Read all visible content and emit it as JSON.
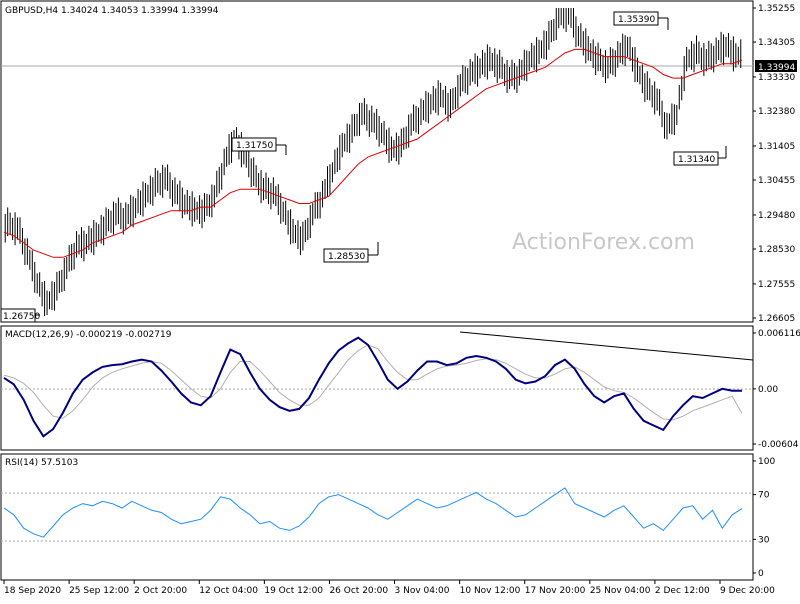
{
  "main_panel": {
    "header": "GBPUSD,H4  1.34024 1.34053 1.33994 1.33994",
    "watermark": "ActionForex.com",
    "current_price": "1.33994",
    "y_ticks": [
      "1.35255",
      "1.34305",
      "1.33330",
      "1.32380",
      "1.31405",
      "1.30455",
      "1.29480",
      "1.28530",
      "1.27555",
      "1.26605"
    ],
    "callouts": [
      "1.35390",
      "1.31750",
      "1.31340",
      "1.28530",
      "1.26750"
    ]
  },
  "macd_panel": {
    "header": "MACD(12,26,9) -0.000219 -0.002719",
    "y_ticks": [
      "0.006116",
      "0.00",
      "-0.00604"
    ]
  },
  "rsi_panel": {
    "header": "RSI(14) 57.5103",
    "y_ticks": [
      "100",
      "70",
      "30",
      "0"
    ]
  },
  "x_labels": [
    "18 Sep 2020",
    "25 Sep 12:00",
    "2 Oct 20:00",
    "12 Oct 04:00",
    "19 Oct 12:00",
    "26 Oct 20:00",
    "3 Nov 04:00",
    "10 Nov 12:00",
    "17 Nov 20:00",
    "25 Nov 04:00",
    "2 Dec 12:00",
    "9 Dec 20:00"
  ],
  "chart_data": [
    {
      "type": "line",
      "series": [
        {
          "values_x_index": [
            0,
            4,
            8,
            12,
            16,
            20,
            24,
            28,
            32,
            36,
            40,
            44,
            48,
            52,
            56,
            60,
            64,
            68,
            72,
            76,
            80,
            84,
            88,
            92,
            96,
            100,
            104,
            108,
            112,
            116,
            120,
            124,
            128,
            132,
            136,
            140,
            144,
            148,
            152,
            156,
            160,
            164,
            168,
            172,
            176,
            180,
            184,
            188,
            192,
            196,
            200,
            204,
            208,
            212,
            216,
            220,
            224,
            228,
            232,
            236,
            240,
            244,
            248,
            252,
            256,
            260,
            264,
            268,
            272,
            276,
            280,
            284,
            288,
            292,
            296,
            300
          ],
          "close": [
            1.292,
            1.291,
            1.284,
            1.276,
            1.27,
            1.274,
            1.28,
            1.286,
            1.287,
            1.289,
            1.292,
            1.295,
            1.294,
            1.297,
            1.3,
            1.303,
            1.305,
            1.301,
            1.298,
            1.296,
            1.296,
            1.3,
            1.309,
            1.316,
            1.312,
            1.306,
            1.302,
            1.301,
            1.296,
            1.29,
            1.288,
            1.295,
            1.3,
            1.307,
            1.314,
            1.318,
            1.323,
            1.321,
            1.318,
            1.313,
            1.314,
            1.32,
            1.323,
            1.326,
            1.328,
            1.325,
            1.331,
            1.334,
            1.336,
            1.338,
            1.336,
            1.333,
            1.334,
            1.338,
            1.34,
            1.344,
            1.35,
            1.351,
            1.345,
            1.341,
            1.338,
            1.336,
            1.339,
            1.342,
            1.335,
            1.33,
            1.327,
            1.319,
            1.323,
            1.338,
            1.34,
            1.338,
            1.34,
            1.342,
            1.339,
            1.34
          ],
          "ma": [
            1.29,
            1.289,
            1.287,
            1.285,
            1.284,
            1.283,
            1.283,
            1.284,
            1.285,
            1.287,
            1.288,
            1.289,
            1.29,
            1.292,
            1.293,
            1.294,
            1.295,
            1.296,
            1.296,
            1.296,
            1.297,
            1.297,
            1.299,
            1.301,
            1.302,
            1.302,
            1.302,
            1.301,
            1.3,
            1.299,
            1.298,
            1.298,
            1.299,
            1.3,
            1.303,
            1.306,
            1.309,
            1.311,
            1.312,
            1.313,
            1.314,
            1.315,
            1.316,
            1.318,
            1.32,
            1.322,
            1.324,
            1.326,
            1.328,
            1.33,
            1.331,
            1.332,
            1.333,
            1.334,
            1.335,
            1.336,
            1.338,
            1.34,
            1.341,
            1.341,
            1.34,
            1.339,
            1.339,
            1.339,
            1.338,
            1.337,
            1.336,
            1.334,
            1.333,
            1.333,
            1.334,
            1.335,
            1.336,
            1.337,
            1.337,
            1.338
          ]
        }
      ],
      "ylim": [
        1.26605,
        1.35255
      ]
    },
    {
      "type": "line",
      "series": [
        {
          "name": "MACD",
          "values": [
            0.0012,
            0.0005,
            -0.0012,
            -0.0035,
            -0.0052,
            -0.0044,
            -0.0026,
            -0.0005,
            0.001,
            0.0018,
            0.0024,
            0.0026,
            0.0027,
            0.003,
            0.0032,
            0.003,
            0.002,
            0.0008,
            -0.0005,
            -0.0015,
            -0.0018,
            -0.0008,
            0.0018,
            0.0043,
            0.0038,
            0.0018,
            0.0,
            -0.0012,
            -0.002,
            -0.0024,
            -0.0022,
            -0.001,
            0.001,
            0.0028,
            0.0042,
            0.005,
            0.0056,
            0.0048,
            0.003,
            0.001,
            0.0,
            0.0008,
            0.002,
            0.003,
            0.003,
            0.0026,
            0.0028,
            0.0034,
            0.0036,
            0.0034,
            0.003,
            0.0022,
            0.001,
            0.0006,
            0.0008,
            0.0014,
            0.0026,
            0.0032,
            0.0022,
            0.0005,
            -0.0008,
            -0.0015,
            -0.0008,
            -0.0005,
            -0.0022,
            -0.0035,
            -0.004,
            -0.0045,
            -0.003,
            -0.0018,
            -0.0008,
            -0.001,
            -0.0005,
            0.0,
            -0.0002,
            -0.0002
          ]
        },
        {
          "name": "Signal",
          "values": [
            0.0015,
            0.0012,
            0.0006,
            -0.0004,
            -0.0018,
            -0.003,
            -0.0032,
            -0.0024,
            -0.0012,
            0.0002,
            0.0012,
            0.0018,
            0.0022,
            0.0025,
            0.0028,
            0.003,
            0.0028,
            0.002,
            0.001,
            0.0,
            -0.0008,
            -0.001,
            0.0,
            0.0018,
            0.003,
            0.003,
            0.002,
            0.0008,
            -0.0004,
            -0.0012,
            -0.0018,
            -0.0018,
            -0.001,
            0.0004,
            0.0018,
            0.0032,
            0.0042,
            0.0048,
            0.0044,
            0.003,
            0.0018,
            0.001,
            0.001,
            0.0016,
            0.0022,
            0.0025,
            0.0026,
            0.0028,
            0.0031,
            0.0033,
            0.0032,
            0.0028,
            0.0022,
            0.0016,
            0.0012,
            0.0012,
            0.0016,
            0.0022,
            0.0024,
            0.0018,
            0.001,
            0.0002,
            -0.0002,
            -0.0004,
            -0.001,
            -0.0018,
            -0.0026,
            -0.0033,
            -0.0034,
            -0.003,
            -0.0024,
            -0.002,
            -0.0016,
            -0.0012,
            -0.0008,
            -0.0027
          ]
        }
      ],
      "ylim": [
        -0.00604,
        0.006116
      ]
    },
    {
      "type": "line",
      "series": [
        {
          "values": [
            58,
            52,
            40,
            35,
            32,
            42,
            52,
            58,
            62,
            60,
            64,
            62,
            58,
            64,
            60,
            56,
            54,
            48,
            44,
            46,
            48,
            56,
            68,
            66,
            58,
            52,
            44,
            46,
            40,
            38,
            42,
            50,
            62,
            68,
            70,
            66,
            62,
            58,
            52,
            48,
            54,
            60,
            66,
            62,
            58,
            60,
            64,
            68,
            72,
            66,
            62,
            56,
            50,
            52,
            58,
            64,
            70,
            76,
            62,
            58,
            54,
            50,
            56,
            60,
            50,
            40,
            44,
            38,
            48,
            58,
            60,
            48,
            56,
            40,
            52,
            57.5
          ]
        }
      ],
      "ylim": [
        0,
        100
      ]
    }
  ]
}
